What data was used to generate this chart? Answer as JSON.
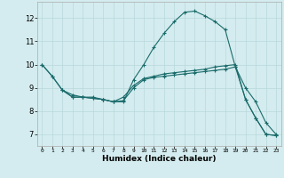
{
  "xlabel": "Humidex (Indice chaleur)",
  "bg_color": "#d4ecef",
  "line_color": "#1a6b6b",
  "grid_color": "#b8d8dc",
  "xlim": [
    -0.5,
    23.5
  ],
  "ylim": [
    6.5,
    12.7
  ],
  "yticks": [
    7,
    8,
    9,
    10,
    11,
    12
  ],
  "xticks": [
    0,
    1,
    2,
    3,
    4,
    5,
    6,
    7,
    8,
    9,
    10,
    11,
    12,
    13,
    14,
    15,
    16,
    17,
    18,
    19,
    20,
    21,
    22,
    23
  ],
  "line1_x": [
    0,
    1,
    2,
    3,
    4,
    5,
    6,
    7,
    8,
    9,
    10,
    11,
    12,
    13,
    14,
    15,
    16,
    17,
    18,
    19,
    20,
    21,
    22,
    23
  ],
  "line1_y": [
    10.0,
    9.5,
    8.9,
    8.6,
    8.6,
    8.6,
    8.5,
    8.4,
    8.4,
    9.35,
    10.0,
    10.75,
    11.35,
    11.85,
    12.25,
    12.3,
    12.1,
    11.85,
    11.5,
    9.9,
    8.5,
    7.7,
    7.0,
    6.95
  ],
  "line2_x": [
    0,
    1,
    2,
    3,
    4,
    5,
    6,
    7,
    8,
    9,
    10,
    11,
    12,
    13,
    14,
    15,
    16,
    17,
    18,
    19,
    20,
    21,
    22,
    23
  ],
  "line2_y": [
    10.0,
    9.5,
    8.9,
    8.7,
    8.6,
    8.55,
    8.5,
    8.4,
    8.6,
    9.1,
    9.4,
    9.5,
    9.6,
    9.65,
    9.7,
    9.75,
    9.8,
    9.9,
    9.95,
    10.0,
    8.5,
    7.7,
    7.0,
    6.95
  ],
  "line3_x": [
    2,
    3,
    4,
    5,
    6,
    7,
    8,
    9,
    10,
    11,
    12,
    13,
    14,
    15,
    16,
    17,
    18,
    19,
    20,
    21,
    22,
    23
  ],
  "line3_y": [
    8.9,
    8.6,
    8.6,
    8.55,
    8.5,
    8.4,
    8.45,
    9.0,
    9.35,
    9.45,
    9.5,
    9.55,
    9.6,
    9.65,
    9.7,
    9.75,
    9.8,
    9.9,
    9.0,
    8.4,
    7.5,
    7.0
  ]
}
